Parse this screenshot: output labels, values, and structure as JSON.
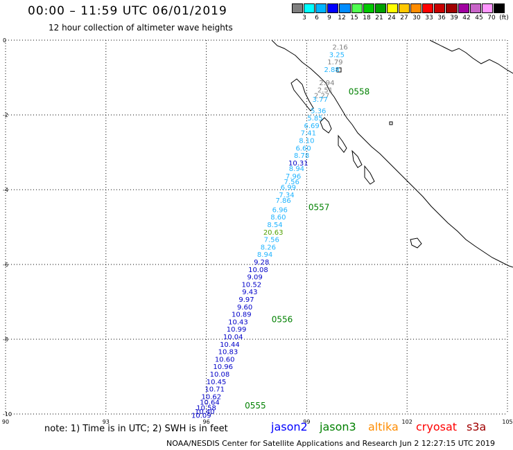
{
  "header": {
    "title": "00:00 – 11:59 UTC 06/01/2019",
    "subtitle": "12 hour collection of altimeter wave heights"
  },
  "legend": {
    "colors": [
      "#7f7f7f",
      "#00ffff",
      "#00b4ff",
      "#0000ff",
      "#008cff",
      "#50ff50",
      "#00c800",
      "#00a000",
      "#ffff00",
      "#ffc800",
      "#ff8c00",
      "#ff0000",
      "#c80000",
      "#a00000",
      "#a000a0",
      "#c864c8",
      "#ff96ff",
      "#000000"
    ],
    "labels": [
      "3",
      "6",
      "9",
      "12",
      "15",
      "18",
      "21",
      "24",
      "27",
      "30",
      "33",
      "36",
      "39",
      "42",
      "45",
      "70",
      "(ft)"
    ]
  },
  "axes": {
    "x_ticks": [
      "90",
      "93",
      "96",
      "99",
      "102",
      "105"
    ],
    "y_ticks": [
      "0",
      "-2",
      "-4",
      "-6",
      "-8",
      "-10"
    ]
  },
  "pass_labels": [
    {
      "text": "0558",
      "color": "#008000",
      "lon": 100.25,
      "lat": -1.45
    },
    {
      "text": "0557",
      "color": "#008000",
      "lon": 99.05,
      "lat": -4.55
    },
    {
      "text": "0556",
      "color": "#008000",
      "lon": 97.95,
      "lat": -7.55
    },
    {
      "text": "0555",
      "color": "#008000",
      "lon": 97.15,
      "lat": -9.85
    }
  ],
  "swh_labels": [
    {
      "text": "2.16",
      "color": "#808080",
      "lon": 100.0,
      "lat": -0.25
    },
    {
      "text": "3.25",
      "color": "#20b4ff",
      "lon": 99.9,
      "lat": -0.45
    },
    {
      "text": "1.79",
      "color": "#808080",
      "lon": 99.85,
      "lat": -0.65
    },
    {
      "text": "2.88",
      "color": "#20b4ff",
      "lon": 99.75,
      "lat": -0.85
    },
    {
      "text": "2.94",
      "color": "#808080",
      "lon": 99.6,
      "lat": -1.2
    },
    {
      "text": "2.51",
      "color": "#808080",
      "lon": 99.55,
      "lat": -1.4
    },
    {
      "text": "2.27",
      "color": "#808080",
      "lon": 99.45,
      "lat": -1.55
    },
    {
      "text": "3.77",
      "color": "#20b4ff",
      "lon": 99.4,
      "lat": -1.65
    },
    {
      "text": "5.36",
      "color": "#20b4ff",
      "lon": 99.35,
      "lat": -1.95
    },
    {
      "text": "5.85",
      "color": "#20b4ff",
      "lon": 99.25,
      "lat": -2.15
    },
    {
      "text": "6.69",
      "color": "#20b4ff",
      "lon": 99.15,
      "lat": -2.35
    },
    {
      "text": "7.41",
      "color": "#20b4ff",
      "lon": 99.05,
      "lat": -2.55
    },
    {
      "text": "8.10",
      "color": "#20b4ff",
      "lon": 99.0,
      "lat": -2.75
    },
    {
      "text": "6.60",
      "color": "#20b4ff",
      "lon": 98.9,
      "lat": -2.95
    },
    {
      "text": "8.78",
      "color": "#20b4ff",
      "lon": 98.85,
      "lat": -3.15
    },
    {
      "text": "10.31",
      "color": "#0000c8",
      "lon": 98.75,
      "lat": -3.35
    },
    {
      "text": "8.94",
      "color": "#20b4ff",
      "lon": 98.7,
      "lat": -3.5
    },
    {
      "text": "7.96",
      "color": "#20b4ff",
      "lon": 98.6,
      "lat": -3.7
    },
    {
      "text": "7.56",
      "color": "#20b4ff",
      "lon": 98.55,
      "lat": -3.85
    },
    {
      "text": "6.99",
      "color": "#20b4ff",
      "lon": 98.45,
      "lat": -4.0
    },
    {
      "text": "7.34",
      "color": "#20b4ff",
      "lon": 98.4,
      "lat": -4.2
    },
    {
      "text": "7.86",
      "color": "#20b4ff",
      "lon": 98.3,
      "lat": -4.35
    },
    {
      "text": "6.96",
      "color": "#20b4ff",
      "lon": 98.2,
      "lat": -4.6
    },
    {
      "text": "8.60",
      "color": "#20b4ff",
      "lon": 98.15,
      "lat": -4.8
    },
    {
      "text": "8.54",
      "color": "#20b4ff",
      "lon": 98.05,
      "lat": -5.0
    },
    {
      "text": "20.63",
      "color": "#50a000",
      "lon": 98.0,
      "lat": -5.2
    },
    {
      "text": "7.56",
      "color": "#20b4ff",
      "lon": 97.95,
      "lat": -5.4
    },
    {
      "text": "8.26",
      "color": "#20b4ff",
      "lon": 97.85,
      "lat": -5.6
    },
    {
      "text": "8.94",
      "color": "#20b4ff",
      "lon": 97.75,
      "lat": -5.8
    },
    {
      "text": "9.28",
      "color": "#0000c8",
      "lon": 97.65,
      "lat": -6.0
    },
    {
      "text": "10.08",
      "color": "#0000c8",
      "lon": 97.55,
      "lat": -6.2
    },
    {
      "text": "9.09",
      "color": "#0000c8",
      "lon": 97.45,
      "lat": -6.4
    },
    {
      "text": "10.52",
      "color": "#0000c8",
      "lon": 97.35,
      "lat": -6.6
    },
    {
      "text": "9.43",
      "color": "#0000c8",
      "lon": 97.3,
      "lat": -6.8
    },
    {
      "text": "9.97",
      "color": "#0000c8",
      "lon": 97.2,
      "lat": -7.0
    },
    {
      "text": "9.60",
      "color": "#0000c8",
      "lon": 97.15,
      "lat": -7.2
    },
    {
      "text": "10.89",
      "color": "#0000c8",
      "lon": 97.05,
      "lat": -7.4
    },
    {
      "text": "10.43",
      "color": "#0000c8",
      "lon": 96.95,
      "lat": -7.6
    },
    {
      "text": "10.99",
      "color": "#0000c8",
      "lon": 96.9,
      "lat": -7.8
    },
    {
      "text": "10.04",
      "color": "#0000c8",
      "lon": 96.8,
      "lat": -8.0
    },
    {
      "text": "10.44",
      "color": "#0000c8",
      "lon": 96.7,
      "lat": -8.2
    },
    {
      "text": "10.83",
      "color": "#0000c8",
      "lon": 96.65,
      "lat": -8.4
    },
    {
      "text": "10.60",
      "color": "#0000c8",
      "lon": 96.55,
      "lat": -8.6
    },
    {
      "text": "10.96",
      "color": "#0000c8",
      "lon": 96.5,
      "lat": -8.8
    },
    {
      "text": "10.08",
      "color": "#0000c8",
      "lon": 96.4,
      "lat": -9.0
    },
    {
      "text": "10.45",
      "color": "#0000c8",
      "lon": 96.3,
      "lat": -9.2
    },
    {
      "text": "10.71",
      "color": "#0000c8",
      "lon": 96.25,
      "lat": -9.4
    },
    {
      "text": "10.62",
      "color": "#0000c8",
      "lon": 96.15,
      "lat": -9.6
    },
    {
      "text": "10.64",
      "color": "#0000c8",
      "lon": 96.1,
      "lat": -9.75
    },
    {
      "text": "10.58",
      "color": "#0000c8",
      "lon": 96.0,
      "lat": -9.9
    },
    {
      "text": "10.40",
      "color": "#0000c8",
      "lon": 95.95,
      "lat": -10.0
    },
    {
      "text": "10.09",
      "color": "#0000c8",
      "lon": 95.85,
      "lat": -10.1
    }
  ],
  "note": "note: 1) Time is in UTC; 2) SWH is in feet",
  "satellites": [
    {
      "name": "jason2",
      "color": "#0000ff"
    },
    {
      "name": "jason3",
      "color": "#008000"
    },
    {
      "name": "altika",
      "color": "#ff8c00"
    },
    {
      "name": "cryosat",
      "color": "#ff0000"
    },
    {
      "name": "s3a",
      "color": "#a00000"
    }
  ],
  "footer": "NOAA/NESDIS Center for Satellite Applications and Research    Jun  2 12:27:15 UTC 2019"
}
